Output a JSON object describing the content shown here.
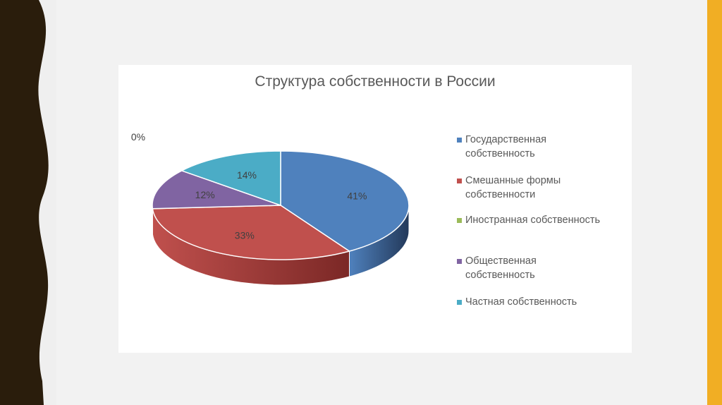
{
  "chart_data": {
    "type": "pie",
    "title": "Структура собственности в России",
    "three_d": true,
    "legend_position": "right",
    "slices": [
      {
        "name": "Государственная собственность",
        "value": 41,
        "label": "41%",
        "color": "#4f81bd",
        "side_color": "#23395a"
      },
      {
        "name": "Смешанные формы собственности",
        "value": 33,
        "label": "33%",
        "color": "#c0504d",
        "side_color": "#7b2826"
      },
      {
        "name": "Иностранная собственность",
        "value": 0,
        "label": "0%",
        "color": "#9bbb59",
        "side_color": "#5a7030"
      },
      {
        "name": "Общественная собственность",
        "value": 12,
        "label": "12%",
        "color": "#8064a2",
        "side_color": "#4c3b62"
      },
      {
        "name": "Частная собственность",
        "value": 14,
        "label": "14%",
        "color": "#4bacc6",
        "side_color": "#2a6a7c"
      }
    ],
    "legend": [
      {
        "line1": "Государственная",
        "line2": "собственность"
      },
      {
        "line1": "Смешанные формы",
        "line2": "собственности"
      },
      {
        "line1": "Иностранная собственность",
        "line2": ""
      },
      {
        "line1": "Общественная",
        "line2": "собственность"
      },
      {
        "line1": "Частная собственность",
        "line2": ""
      }
    ]
  },
  "theme": {
    "left_border_color": "#2a1d0c",
    "accent_bar_color": "#f1ae24",
    "text_color": "#595959"
  }
}
